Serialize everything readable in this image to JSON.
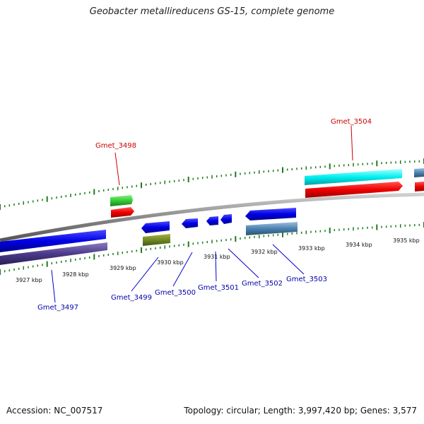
{
  "title": "Geobacter metallireducens GS-15, complete genome",
  "footer": {
    "accession": "Accession: NC_007517",
    "summary": "Topology: circular; Length: 3,997,420 bp; Genes: 3,577"
  },
  "scale_labels": [
    "3927 kbp",
    "3928 kbp",
    "3929 kbp",
    "3930 kbp",
    "3931 kbp",
    "3932 kbp",
    "3933 kbp",
    "3934 kbp",
    "3935 kbp"
  ],
  "genes": [
    {
      "name": "Gmet_3497",
      "strand": "minus",
      "color": "#0000cc"
    },
    {
      "name": "Gmet_3498",
      "strand": "plus",
      "color": "#cc0000"
    },
    {
      "name": "Gmet_3499",
      "strand": "minus",
      "color": "#0000cc"
    },
    {
      "name": "Gmet_3500",
      "strand": "minus",
      "color": "#0000cc"
    },
    {
      "name": "Gmet_3501",
      "strand": "minus",
      "color": "#0000cc"
    },
    {
      "name": "Gmet_3502",
      "strand": "minus",
      "color": "#0000cc"
    },
    {
      "name": "Gmet_3503",
      "strand": "minus",
      "color": "#0000cc"
    },
    {
      "name": "Gmet_3504",
      "strand": "plus",
      "color": "#cc0000"
    }
  ],
  "colors": {
    "forward_tick": "#1f7a1f",
    "reverse_tick": "#1f7a1f",
    "backbone": "#8a8a8a"
  }
}
